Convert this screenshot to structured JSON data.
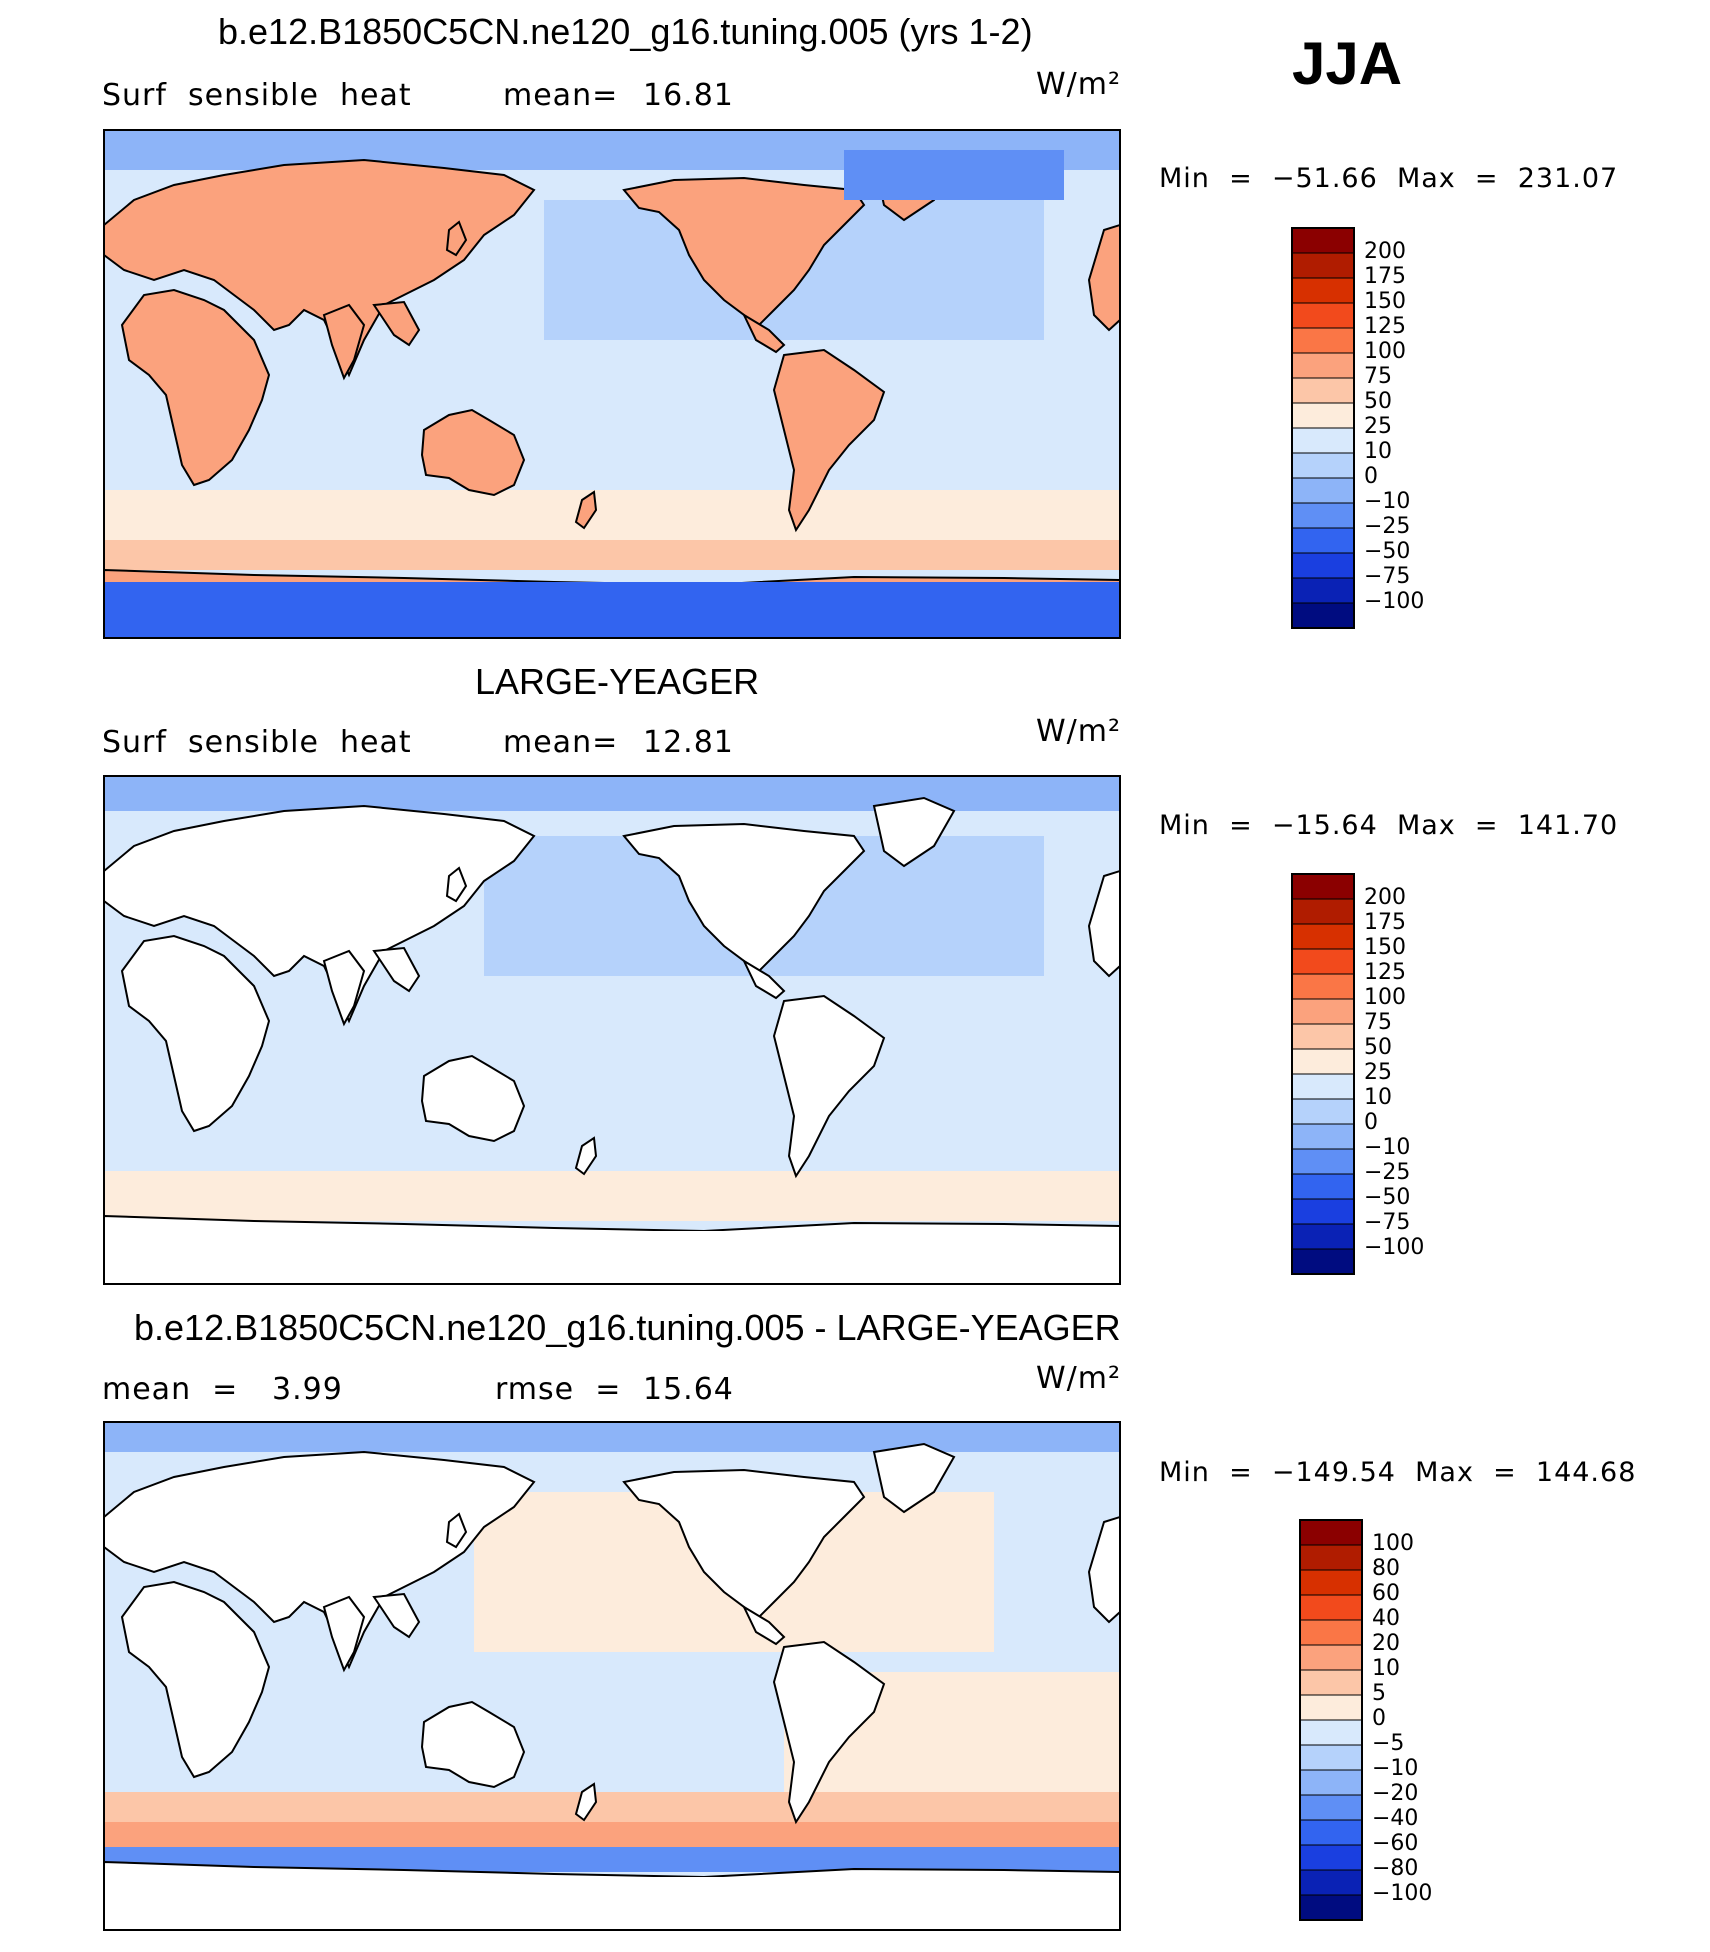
{
  "season": "JJA",
  "panels": [
    {
      "title": "b.e12.B1850C5CN.ne120_g16.tuning.005 (yrs 1-2)",
      "left_label": "Surf  sensible  heat",
      "stat1_label": "mean=",
      "stat1_value": "16.81",
      "stat2_label": "",
      "stat2_value": "",
      "units": "W/m²",
      "minmax": "Min  =  −51.66  Max  =  231.07"
    },
    {
      "title": "LARGE-YEAGER",
      "left_label": "Surf  sensible  heat",
      "stat1_label": "mean=",
      "stat1_value": "12.81",
      "stat2_label": "",
      "stat2_value": "",
      "units": "W/m²",
      "minmax": "Min  =  −15.64  Max  =  141.70"
    },
    {
      "title": "b.e12.B1850C5CN.ne120_g16.tuning.005 - LARGE-YEAGER",
      "left_label": "mean  =",
      "stat1_label": "3.99",
      "stat1_value": "",
      "stat2_label": "rmse  =",
      "stat2_value": "15.64",
      "units": "W/m²",
      "minmax": "Min  =  −149.54  Max  =  144.68"
    }
  ],
  "chart_data": [
    {
      "type": "heatmap",
      "title": "b.e12.B1850C5CN.ne120_g16.tuning.005 (yrs 1-2)",
      "variable": "Surf sensible heat",
      "units": "W/m2",
      "mean": 16.81,
      "min": -51.66,
      "max": 231.07,
      "colorbar_levels": [
        "200",
        "175",
        "150",
        "125",
        "100",
        "75",
        "50",
        "25",
        "10",
        "0",
        "−10",
        "−25",
        "−50",
        "−75",
        "−100"
      ],
      "colors": [
        "#8b0000",
        "#b01c00",
        "#d73000",
        "#f24a1c",
        "#fa7646",
        "#fba27d",
        "#fcc6a8",
        "#fdecdc",
        "#d8e9fc",
        "#b5d2fb",
        "#8db4f8",
        "#5f8ff5",
        "#3264f0",
        "#1a3fe0",
        "#0a22b5",
        "#000c80"
      ]
    },
    {
      "type": "heatmap",
      "title": "LARGE-YEAGER",
      "variable": "Surf sensible heat",
      "units": "W/m2",
      "mean": 12.81,
      "min": -15.64,
      "max": 141.7,
      "colorbar_levels": [
        "200",
        "175",
        "150",
        "125",
        "100",
        "75",
        "50",
        "25",
        "10",
        "0",
        "−10",
        "−25",
        "−50",
        "−75",
        "−100"
      ],
      "colors": [
        "#8b0000",
        "#b01c00",
        "#d73000",
        "#f24a1c",
        "#fa7646",
        "#fba27d",
        "#fcc6a8",
        "#fdecdc",
        "#d8e9fc",
        "#b5d2fb",
        "#8db4f8",
        "#5f8ff5",
        "#3264f0",
        "#1a3fe0",
        "#0a22b5",
        "#000c80"
      ]
    },
    {
      "type": "heatmap",
      "title": "b.e12.B1850C5CN.ne120_g16.tuning.005 - LARGE-YEAGER",
      "units": "W/m2",
      "mean": 3.99,
      "rmse": 15.64,
      "min": -149.54,
      "max": 144.68,
      "colorbar_levels": [
        "100",
        "80",
        "60",
        "40",
        "20",
        "10",
        "5",
        "0",
        "−5",
        "−10",
        "−20",
        "−40",
        "−60",
        "−80",
        "−100"
      ],
      "colors": [
        "#8b0000",
        "#b01c00",
        "#d73000",
        "#f24a1c",
        "#fa7646",
        "#fba27d",
        "#fcc6a8",
        "#fdecdc",
        "#d8e9fc",
        "#b5d2fb",
        "#8db4f8",
        "#5f8ff5",
        "#3264f0",
        "#1a3fe0",
        "#0a22b5",
        "#000c80"
      ]
    }
  ]
}
